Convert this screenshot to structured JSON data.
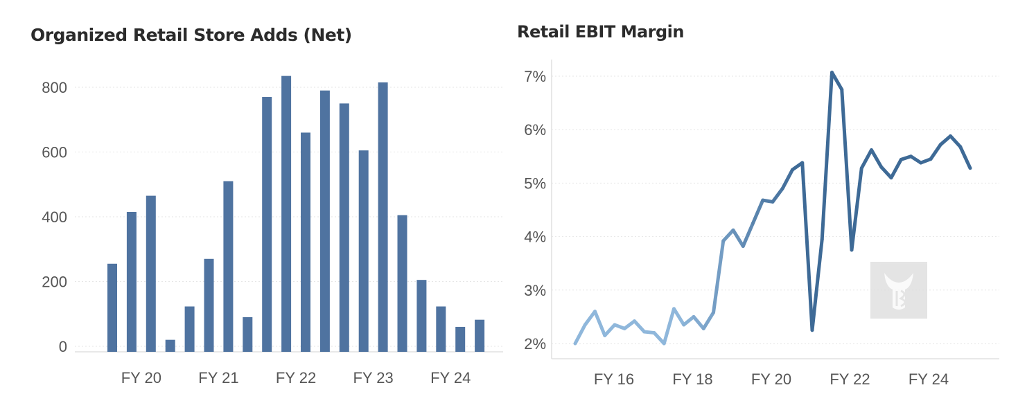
{
  "charts": {
    "left": {
      "title": "Organized Retail Store Adds (Net)"
    },
    "right": {
      "title": "Retail EBIT Margin"
    }
  },
  "chart_data": [
    {
      "type": "bar",
      "title": "Organized Retail Store Adds (Net)",
      "xlabel": "",
      "ylabel": "",
      "ylim": [
        0,
        880
      ],
      "yticks": [
        0,
        200,
        400,
        600,
        800
      ],
      "ytick_labels": [
        "0",
        "200",
        "400",
        "600",
        "800"
      ],
      "xtick_labels": [
        "FY 20",
        "FY 21",
        "FY 22",
        "FY 23",
        "FY 24"
      ],
      "grid": true,
      "color": "#4f73a0",
      "series": [
        {
          "values": [
            255,
            415,
            465,
            20,
            123,
            270,
            510,
            90,
            770,
            835,
            660,
            790,
            750,
            605,
            815,
            405,
            205,
            123,
            60,
            82
          ]
        }
      ]
    },
    {
      "type": "line",
      "title": "Retail EBIT Margin",
      "xlabel": "",
      "ylabel": "",
      "ylim": [
        1.85,
        7.35
      ],
      "yticks": [
        2,
        3,
        4,
        5,
        6,
        7
      ],
      "ytick_labels": [
        "2%",
        "3%",
        "4%",
        "5%",
        "6%",
        "7%"
      ],
      "xtick_labels": [
        "FY 16",
        "FY 18",
        "FY 20",
        "FY 22",
        "FY 24"
      ],
      "grid": true,
      "color_light": "#8fb7db",
      "color_dark": "#3e6a96",
      "series": [
        {
          "values": [
            2.0,
            2.35,
            2.6,
            2.15,
            2.35,
            2.28,
            2.42,
            2.22,
            2.2,
            2.0,
            2.65,
            2.35,
            2.5,
            2.28,
            2.58,
            3.92,
            4.12,
            3.82,
            4.25,
            4.68,
            4.65,
            4.9,
            5.25,
            5.38,
            2.25,
            3.95,
            7.07,
            6.75,
            3.75,
            5.28,
            5.62,
            5.3,
            5.1,
            5.44,
            5.5,
            5.38,
            5.45,
            5.72,
            5.88,
            5.68,
            5.28
          ]
        }
      ]
    }
  ]
}
